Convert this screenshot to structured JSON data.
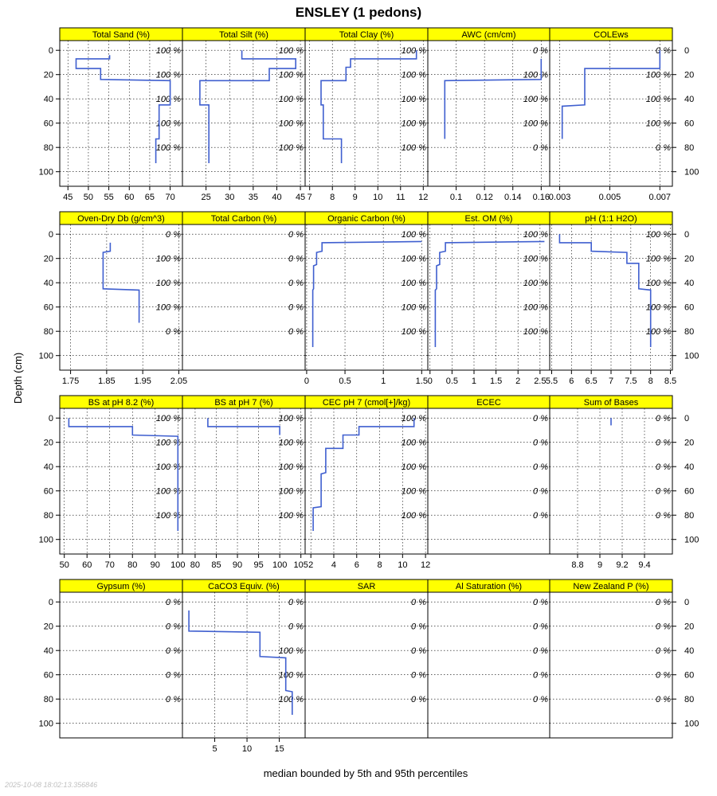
{
  "figure": {
    "title": "ENSLEY (1 pedons)",
    "ylabel": "Depth (cm)",
    "xlabel": "median bounded by 5th and 95th percentiles",
    "timestamp": "2025-10-08 18:02:13.356846"
  },
  "colors": {
    "strip": "#ffff00",
    "line": "#3f5fcf",
    "grid": "#000000"
  },
  "chart_data": {
    "type": "line",
    "y_axis": {
      "ylim": [
        112,
        -8
      ],
      "ticks": [
        0,
        20,
        40,
        60,
        80,
        100
      ],
      "reversed": true
    },
    "grid": true,
    "panels": [
      {
        "title": "Total Sand (%)",
        "xlim": [
          43,
          73
        ],
        "xticks": [
          45,
          50,
          55,
          60,
          65,
          70
        ],
        "pct_labels": [
          "100 %",
          "100 %",
          "100 %",
          "100 %",
          "100 %"
        ],
        "median": [
          [
            55.2,
            4
          ],
          [
            55.2,
            7
          ],
          [
            47,
            7
          ],
          [
            47,
            15
          ],
          [
            53,
            15
          ],
          [
            53,
            24
          ],
          [
            70,
            25
          ],
          [
            70,
            45
          ],
          [
            67.3,
            45
          ],
          [
            67.3,
            73
          ],
          [
            66.5,
            73
          ],
          [
            66.5,
            93
          ]
        ]
      },
      {
        "title": "Total Silt (%)",
        "xlim": [
          20,
          46
        ],
        "xticks": [
          25,
          30,
          35,
          40,
          45
        ],
        "pct_labels": [
          "100 %",
          "100 %",
          "100 %",
          "100 %",
          "100 %"
        ],
        "median": [
          [
            32.6,
            0
          ],
          [
            32.6,
            7
          ],
          [
            44,
            7
          ],
          [
            44,
            15
          ],
          [
            38.4,
            15
          ],
          [
            38.4,
            25
          ],
          [
            23.7,
            25
          ],
          [
            23.7,
            45
          ],
          [
            25.6,
            45
          ],
          [
            25.6,
            93
          ]
        ]
      },
      {
        "title": "Total Clay (%)",
        "xlim": [
          6.8,
          12.2
        ],
        "xticks": [
          7,
          8,
          9,
          10,
          11,
          12
        ],
        "pct_labels": [
          "100 %",
          "100 %",
          "100 %",
          "100 %",
          "100 %"
        ],
        "median": [
          [
            11.7,
            0
          ],
          [
            11.7,
            7
          ],
          [
            8.8,
            7
          ],
          [
            8.8,
            14
          ],
          [
            8.6,
            14
          ],
          [
            8.6,
            25
          ],
          [
            7.5,
            25
          ],
          [
            7.5,
            45
          ],
          [
            7.6,
            45
          ],
          [
            7.6,
            73
          ],
          [
            8.4,
            73
          ],
          [
            8.4,
            93
          ]
        ]
      },
      {
        "title": "AWC (cm/cm)",
        "xlim": [
          0.08,
          0.166
        ],
        "xticks": [
          0.1,
          0.12,
          0.14,
          0.16
        ],
        "pct_labels": [
          "0 %",
          "100 %",
          "100 %",
          "100 %",
          "0 %"
        ],
        "median": [
          [
            0.16,
            7
          ],
          [
            0.16,
            24
          ],
          [
            0.092,
            25
          ],
          [
            0.092,
            73
          ]
        ]
      },
      {
        "title": "COLEws",
        "xlim": [
          0.0026,
          0.0075
        ],
        "xticks": [
          0.003,
          0.005,
          0.007
        ],
        "pct_labels": [
          "0 %",
          "100 %",
          "100 %",
          "100 %",
          "0 %"
        ],
        "median": [
          [
            0.007,
            0
          ],
          [
            0.007,
            15
          ],
          [
            0.004,
            15
          ],
          [
            0.004,
            45
          ],
          [
            0.0031,
            46
          ],
          [
            0.0031,
            73
          ]
        ]
      },
      {
        "title": "Oven-Dry Db (g/cm^3)",
        "xlim": [
          1.72,
          2.06
        ],
        "xticks": [
          1.75,
          1.85,
          1.95,
          2.05
        ],
        "pct_labels": [
          "0 %",
          "100 %",
          "100 %",
          "100 %",
          "0 %"
        ],
        "median": [
          [
            1.86,
            7
          ],
          [
            1.86,
            14
          ],
          [
            1.84,
            15
          ],
          [
            1.84,
            45
          ],
          [
            1.94,
            46
          ],
          [
            1.94,
            73
          ]
        ]
      },
      {
        "title": "Total Carbon (%)",
        "xlim": [
          0,
          1
        ],
        "xticks": [],
        "pct_labels": [
          "0 %",
          "0 %",
          "0 %",
          "0 %",
          "0 %"
        ],
        "median": []
      },
      {
        "title": "Organic Carbon (%)",
        "xlim": [
          -0.02,
          1.58
        ],
        "xticks": [
          0,
          0.5,
          1,
          1.5
        ],
        "pct_labels": [
          "100 %",
          "100 %",
          "100 %",
          "100 %",
          "100 %"
        ],
        "median": [
          [
            1.5,
            6
          ],
          [
            0.2,
            7
          ],
          [
            0.2,
            14
          ],
          [
            0.13,
            15
          ],
          [
            0.13,
            25
          ],
          [
            0.09,
            26
          ],
          [
            0.09,
            45
          ],
          [
            0.08,
            46
          ],
          [
            0.08,
            93
          ]
        ]
      },
      {
        "title": "Est. OM (%)",
        "xlim": [
          -0.05,
          2.72
        ],
        "xticks": [
          0,
          0.5,
          1,
          1.5,
          2,
          2.5
        ],
        "pct_labels": [
          "100 %",
          "100 %",
          "100 %",
          "100 %",
          "100 %"
        ],
        "median": [
          [
            2.6,
            6
          ],
          [
            0.35,
            7
          ],
          [
            0.35,
            14
          ],
          [
            0.22,
            15
          ],
          [
            0.22,
            25
          ],
          [
            0.15,
            26
          ],
          [
            0.15,
            45
          ],
          [
            0.12,
            46
          ],
          [
            0.12,
            93
          ]
        ]
      },
      {
        "title": "pH (1:1 H2O)",
        "xlim": [
          5.45,
          8.55
        ],
        "xticks": [
          5.5,
          6.0,
          6.5,
          7.0,
          7.5,
          8.0,
          8.5
        ],
        "pct_labels": [
          "100 %",
          "100 %",
          "100 %",
          "100 %",
          "100 %"
        ],
        "median": [
          [
            5.7,
            0
          ],
          [
            5.7,
            7
          ],
          [
            6.5,
            7
          ],
          [
            6.5,
            14
          ],
          [
            7.4,
            15
          ],
          [
            7.4,
            24
          ],
          [
            7.7,
            24
          ],
          [
            7.7,
            45
          ],
          [
            8.0,
            46
          ],
          [
            8.0,
            93
          ]
        ]
      },
      {
        "title": "BS at pH 8.2 (%)",
        "xlim": [
          48,
          102
        ],
        "xticks": [
          50,
          60,
          70,
          80,
          90,
          100
        ],
        "pct_labels": [
          "100 %",
          "100 %",
          "100 %",
          "100 %",
          "100 %"
        ],
        "median": [
          [
            52,
            0
          ],
          [
            52,
            7
          ],
          [
            80,
            7
          ],
          [
            80,
            14
          ],
          [
            100,
            15
          ],
          [
            100,
            93
          ]
        ]
      },
      {
        "title": "BS at pH 7 (%)",
        "xlim": [
          77,
          106
        ],
        "xticks": [
          80,
          85,
          90,
          95,
          100,
          105
        ],
        "pct_labels": [
          "100 %",
          "100 %",
          "100 %",
          "100 %",
          "100 %"
        ],
        "median": [
          [
            83,
            0
          ],
          [
            83,
            7
          ],
          [
            100,
            7
          ],
          [
            100,
            14
          ]
        ]
      },
      {
        "title": "CEC pH 7 (cmol[+]/kg)",
        "xlim": [
          1.5,
          12.2
        ],
        "xticks": [
          2,
          4,
          6,
          8,
          10,
          12
        ],
        "pct_labels": [
          "100 %",
          "100 %",
          "100 %",
          "100 %",
          "100 %"
        ],
        "median": [
          [
            11,
            0
          ],
          [
            11,
            7
          ],
          [
            6.2,
            7
          ],
          [
            6.2,
            14
          ],
          [
            4.8,
            14
          ],
          [
            4.8,
            25
          ],
          [
            3.3,
            25
          ],
          [
            3.3,
            45
          ],
          [
            2.9,
            46
          ],
          [
            2.9,
            73
          ],
          [
            2.2,
            74
          ],
          [
            2.2,
            93
          ]
        ]
      },
      {
        "title": "ECEC",
        "xlim": [
          0,
          1
        ],
        "xticks": [],
        "pct_labels": [
          "0 %",
          "0 %",
          "0 %",
          "0 %",
          "0 %"
        ],
        "median": []
      },
      {
        "title": "Sum of Bases",
        "xlim": [
          8.55,
          9.65
        ],
        "xticks": [
          8.8,
          9.0,
          9.2,
          9.4
        ],
        "pct_labels": [
          "0 %",
          "0 %",
          "0 %",
          "0 %",
          "0 %"
        ],
        "median": [
          [
            9.1,
            0
          ],
          [
            9.1,
            6
          ]
        ]
      },
      {
        "title": "Gypsum (%)",
        "xlim": [
          0,
          1
        ],
        "xticks": [],
        "pct_labels": [
          "0 %",
          "0 %",
          "0 %",
          "0 %",
          "0 %"
        ],
        "median": []
      },
      {
        "title": "CaCO3 Equiv. (%)",
        "xlim": [
          0,
          19
        ],
        "xticks": [
          5,
          10,
          15
        ],
        "pct_labels": [
          "0 %",
          "0 %",
          "100 %",
          "100 %",
          "100 %"
        ],
        "median": [
          [
            1,
            7
          ],
          [
            1,
            24
          ],
          [
            12,
            25
          ],
          [
            12,
            45
          ],
          [
            16,
            46
          ],
          [
            16,
            73
          ],
          [
            17,
            74
          ],
          [
            17,
            93
          ]
        ]
      },
      {
        "title": "SAR",
        "xlim": [
          0,
          1
        ],
        "xticks": [],
        "pct_labels": [
          "0 %",
          "0 %",
          "0 %",
          "0 %",
          "0 %"
        ],
        "median": []
      },
      {
        "title": "Al Saturation (%)",
        "xlim": [
          0,
          1
        ],
        "xticks": [],
        "pct_labels": [
          "0 %",
          "0 %",
          "0 %",
          "0 %",
          "0 %"
        ],
        "median": []
      },
      {
        "title": "New Zealand P (%)",
        "xlim": [
          0,
          1
        ],
        "xticks": [],
        "pct_labels": [
          "0 %",
          "0 %",
          "0 %",
          "0 %",
          "0 %"
        ],
        "median": []
      }
    ]
  }
}
